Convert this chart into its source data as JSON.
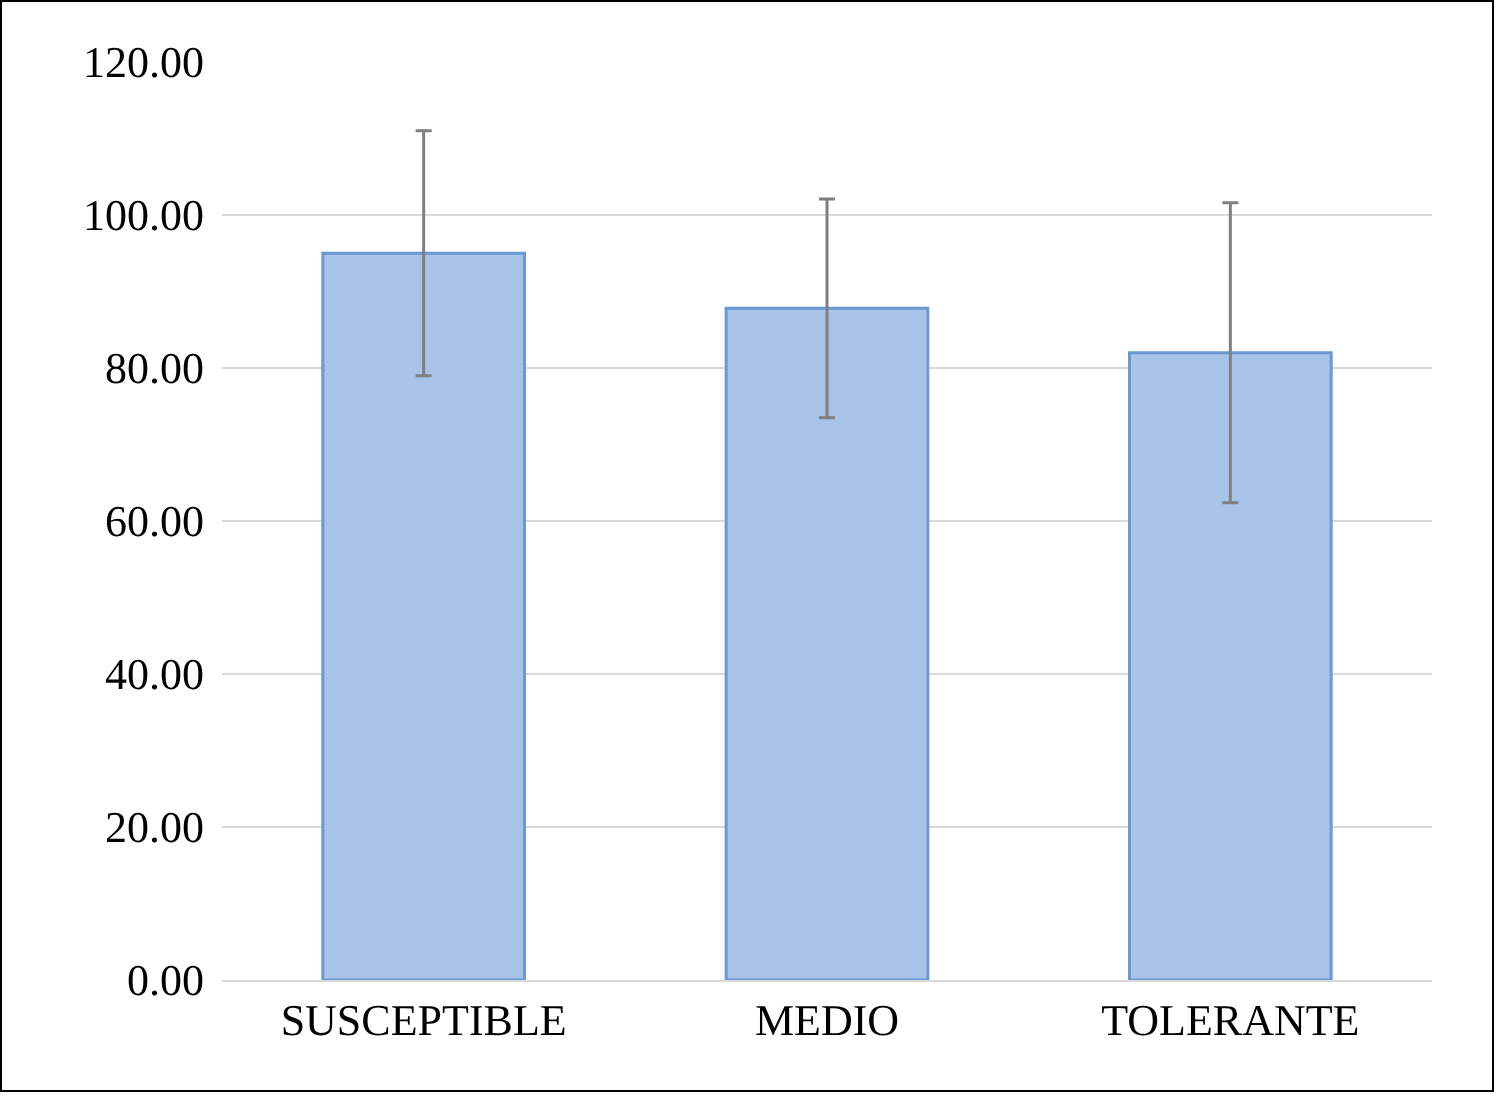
{
  "chart_data": {
    "type": "bar",
    "categories": [
      "SUSCEPTIBLE",
      "MEDIO",
      "TOLERANTE"
    ],
    "values": [
      95,
      87.8,
      82
    ],
    "errors": [
      16,
      14.3,
      19.6
    ],
    "color": "#a7c3e8",
    "ylim": [
      0,
      120
    ],
    "yticks": [
      {
        "value": 0,
        "label": "0.00"
      },
      {
        "value": 20,
        "label": "20.00"
      },
      {
        "value": 40,
        "label": "40.00"
      },
      {
        "value": 60,
        "label": "60.00"
      },
      {
        "value": 80,
        "label": "80.00"
      },
      {
        "value": 100,
        "label": "100.00"
      },
      {
        "value": 120,
        "label": "120.00"
      }
    ],
    "grid": "y"
  }
}
